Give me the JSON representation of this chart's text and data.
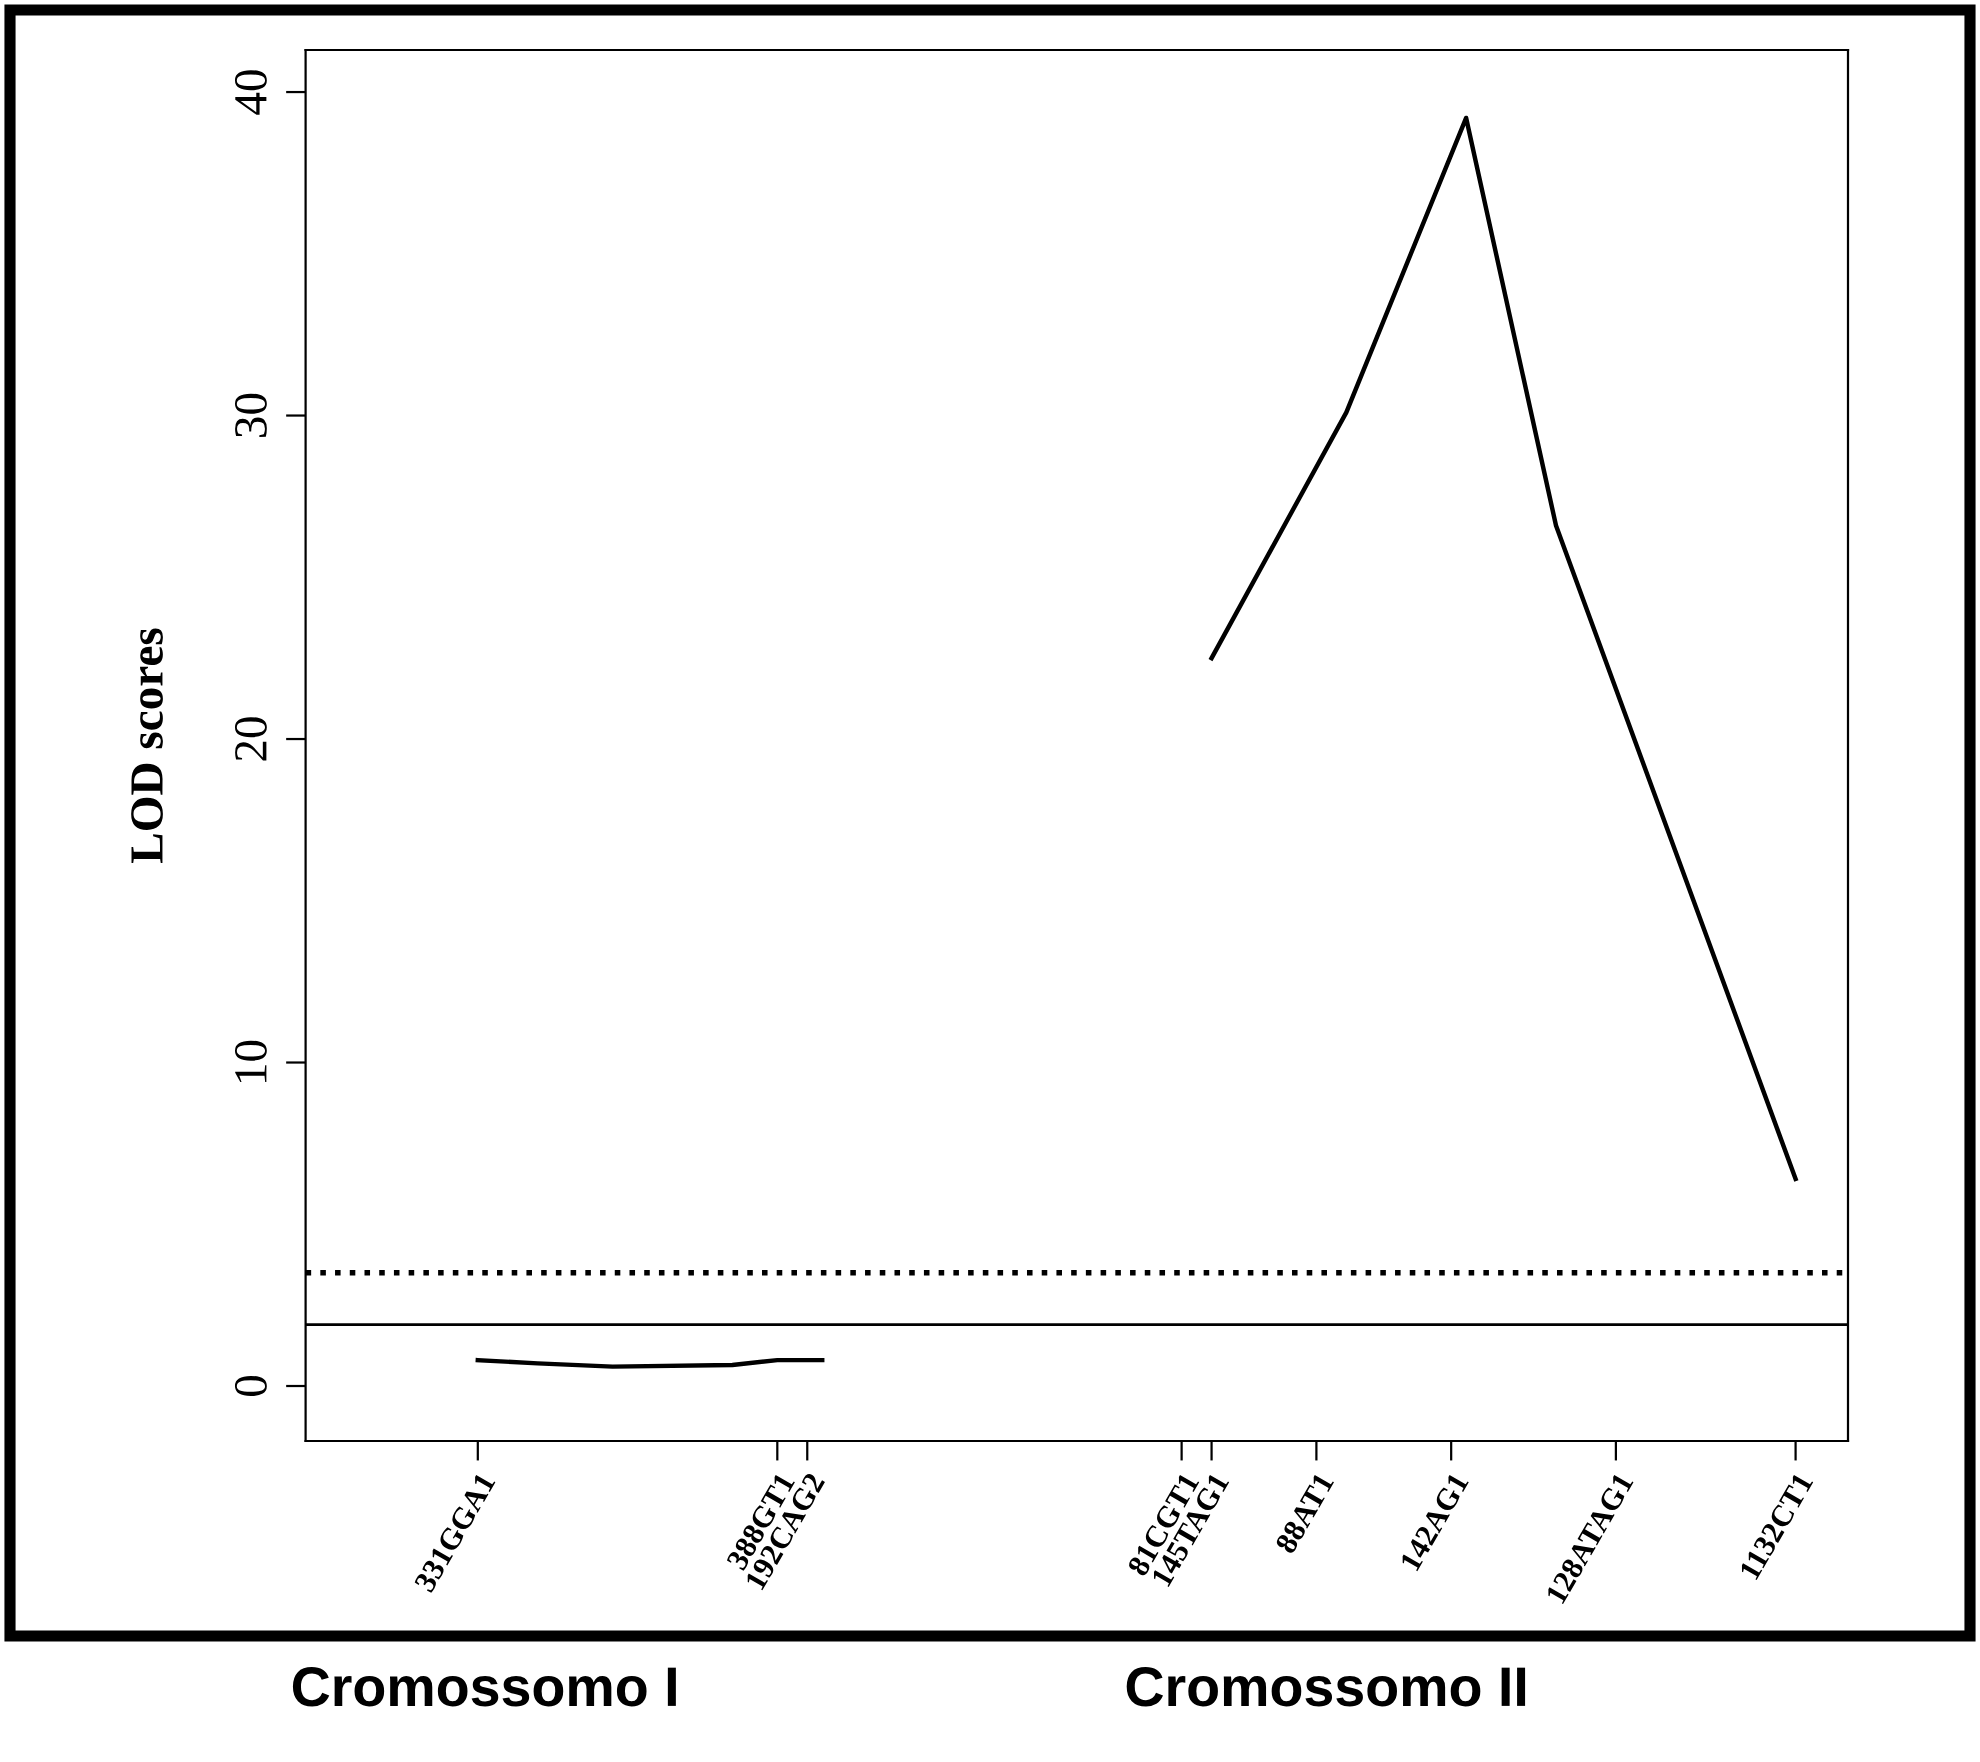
{
  "chart_data": {
    "type": "line",
    "ylabel": "LOD scores",
    "categories": [
      null,
      null,
      null,
      null,
      null,
      null,
      null,
      null,
      null,
      null,
      null,
      "331GGA1",
      null,
      null,
      null,
      null,
      null,
      null,
      null,
      null,
      null,
      null,
      null,
      null,
      null,
      null,
      null,
      null,
      null,
      null,
      null,
      "388GT1",
      null,
      "192CAG2",
      null,
      null,
      null,
      null,
      null,
      null,
      null,
      null,
      null,
      null,
      null,
      null,
      null,
      null,
      null,
      null,
      null,
      null,
      null,
      null,
      null,
      null,
      null,
      null,
      "81CGT1",
      null,
      "145TAG1",
      null,
      null,
      null,
      null,
      null,
      null,
      "88AT1",
      null,
      null,
      null,
      null,
      null,
      null,
      null,
      null,
      "142AG1",
      null,
      null,
      null,
      null,
      null,
      null,
      null,
      null,
      null,
      null,
      "128ATAG1",
      null,
      null,
      null,
      null,
      null,
      null,
      null,
      null,
      null,
      null,
      null,
      "1132CT1",
      null,
      null,
      null
    ],
    "series": [
      {
        "color": "#000000",
        "values": [
          null,
          null,
          null,
          null,
          null,
          null,
          null,
          null,
          null,
          null,
          null,
          0.8,
          null,
          null,
          null,
          0.7,
          null,
          null,
          null,
          null,
          0.6,
          null,
          null,
          null,
          null,
          null,
          null,
          null,
          0.65,
          null,
          null,
          0.8,
          null,
          null,
          0.8,
          null,
          null,
          null,
          null,
          null,
          null,
          null,
          null,
          null,
          null,
          null,
          null,
          null,
          null,
          null,
          null,
          null,
          null,
          null,
          null,
          null,
          null,
          null,
          null,
          null,
          null,
          null,
          null,
          null,
          null,
          null,
          null,
          null,
          null,
          null,
          null,
          null,
          null,
          null,
          null,
          null,
          null,
          null,
          null,
          null,
          null,
          null,
          null,
          null,
          null,
          null,
          null,
          null,
          null,
          null,
          null,
          null,
          null,
          null,
          null,
          null,
          null,
          null,
          null,
          null,
          null,
          null,
          null
        ]
      },
      {
        "color": "#000000",
        "values": [
          null,
          null,
          null,
          null,
          null,
          null,
          null,
          null,
          null,
          null,
          null,
          null,
          null,
          null,
          null,
          null,
          null,
          null,
          null,
          null,
          null,
          null,
          null,
          null,
          null,
          null,
          null,
          null,
          null,
          null,
          null,
          null,
          null,
          null,
          null,
          null,
          null,
          null,
          null,
          null,
          null,
          null,
          null,
          null,
          null,
          null,
          null,
          null,
          null,
          null,
          null,
          null,
          null,
          null,
          null,
          null,
          null,
          null,
          null,
          null,
          22.5,
          null,
          null,
          null,
          null,
          null,
          null,
          null,
          null,
          30.1,
          null,
          null,
          null,
          null,
          null,
          null,
          null,
          39.2,
          null,
          null,
          null,
          null,
          null,
          26.6,
          null,
          null,
          null,
          null,
          null,
          null,
          null,
          null,
          null,
          null,
          null,
          null,
          null,
          null,
          null,
          6.4,
          null,
          null,
          null
        ]
      }
    ],
    "ylim": [
      -1.7,
      41.3
    ],
    "yticks": [
      0,
      10,
      20,
      30,
      40
    ],
    "ref_lines": [
      {
        "axis": "y",
        "value": 3.5,
        "line_style": "dotted",
        "color": "#000000"
      },
      {
        "axis": "y",
        "value": 1.9,
        "line_style": "solid",
        "color": "#000000"
      }
    ],
    "annotations": [
      "Cromossomo I",
      "Cromossomo II"
    ],
    "grid": false,
    "legend": false,
    "marker": "none",
    "line_style": "solid"
  }
}
